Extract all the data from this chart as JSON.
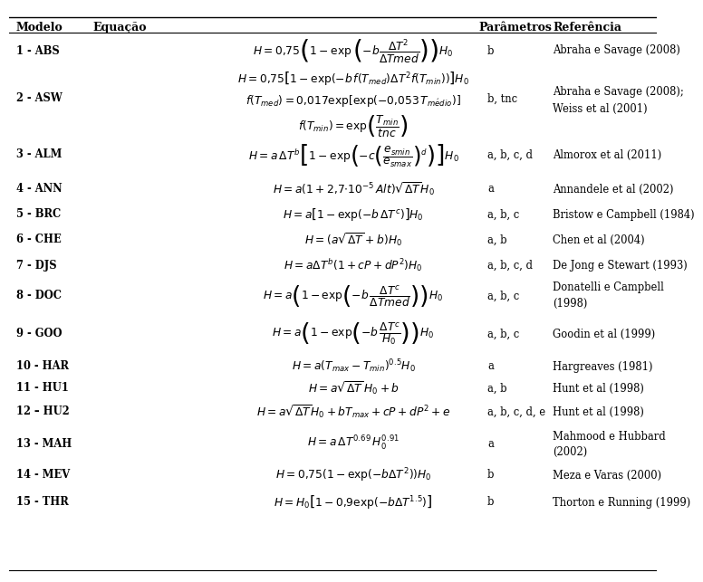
{
  "bg_color": "#ffffff",
  "text_color": "#000000",
  "header_bolditalic": false,
  "rows": [
    {
      "model": "1 - ABS",
      "eq": "$H = 0{,}75\\left(1 - \\exp\\left(-b\\dfrac{\\Delta T^2}{\\Delta Tmed}\\right)\\right)H_0$",
      "params": "b",
      "ref": "Abraha e Savage (2008)"
    },
    {
      "model": "2 - ASW",
      "eq": "$H = 0{,}75\\left[1 - \\exp(-b\\,f(T_{med})\\Delta T^2 f(T_{min}))\\right] H_0$\n$f(T_{med}) = 0{,}017\\exp[\\exp(-0{,}053\\,T_{m\\acute{e}dio})]$\n$f(T_{min}) = \\exp\\!\\left(\\dfrac{T_{min}}{tnc}\\right)$",
      "params": "b, tnc",
      "ref": "Abraha e Savage (2008);\nWeiss et al (2001)"
    },
    {
      "model": "3 - ALM",
      "eq": "$H = a\\,\\Delta T^{b}\\left[1 - \\exp\\!\\left(-c\\left(\\dfrac{e_{smin}}{e_{smax}}\\right)^{d}\\right)\\right]H_0$",
      "params": "a, b, c, d",
      "ref": "Almorox et al (2011)"
    },
    {
      "model": "4 - ANN",
      "eq": "$H = a(1 + 2{,}7{\\cdot}10^{-5}\\,Alt)\\sqrt{\\Delta T}H_0$",
      "params": "a",
      "ref": "Annandele et al (2002)"
    },
    {
      "model": "5 - BRC",
      "eq": "$H = a\\left[1 - \\exp(-b\\,\\Delta T^{c})\\right]H_0$",
      "params": "a, b, c",
      "ref": "Bristow e Campbell (1984)"
    },
    {
      "model": "6 - CHE",
      "eq": "$H = (a\\sqrt{\\Delta T} + b)H_0$",
      "params": "a, b",
      "ref": "Chen et al (2004)"
    },
    {
      "model": "7 - DJS",
      "eq": "$H = a\\Delta T^{b}(1 + cP + dP^2)H_0$",
      "params": "a, b, c, d",
      "ref": "De Jong e Stewart (1993)"
    },
    {
      "model": "8 - DOC",
      "eq": "$H = a\\left(1 - \\exp\\!\\left(-b\\,\\dfrac{\\Delta T^{c}}{\\Delta Tmed}\\right)\\right)H_0$",
      "params": "a, b, c",
      "ref": "Donatelli e Campbell\n(1998)"
    },
    {
      "model": "9 - GOO",
      "eq": "$H = a\\left(1 - \\exp\\!\\left(-b\\,\\dfrac{\\Delta T^{c}}{H_0}\\right)\\right)H_0$",
      "params": "a, b, c",
      "ref": "Goodin et al (1999)"
    },
    {
      "model": "10 - HAR",
      "eq": "$H = a(T_{max} - T_{min})^{0.5}H_0$",
      "params": "a",
      "ref": "Hargreaves (1981)"
    },
    {
      "model": "11 - HU1",
      "eq": "$H = a\\sqrt{\\Delta T}\\,H_0 + b$",
      "params": "a, b",
      "ref": "Hunt et al (1998)"
    },
    {
      "model": "12 – HU2",
      "eq": "$H = a\\sqrt{\\Delta T}H_0 + bT_{max} + cP + dP^2 + e$",
      "params": "a, b, c, d, e",
      "ref": "Hunt et al (1998)"
    },
    {
      "model": "13 - MAH",
      "eq": "$H = a\\,\\Delta T^{0.69}\\,H_0^{0.91}$",
      "params": "a",
      "ref": "Mahmood e Hubbard\n(2002)"
    },
    {
      "model": "14 - MEV",
      "eq": "$H = 0{,}75(1 - \\exp(-b\\Delta T^2))H_0$",
      "params": "b",
      "ref": "Meza e Varas (2000)"
    },
    {
      "model": "15 - THR",
      "eq": "$H = H_0\\left[1 - 0{,}9\\exp(-b\\Delta T^{1.5})\\right]$",
      "params": "b",
      "ref": "Thorton e Running (1999)"
    }
  ]
}
